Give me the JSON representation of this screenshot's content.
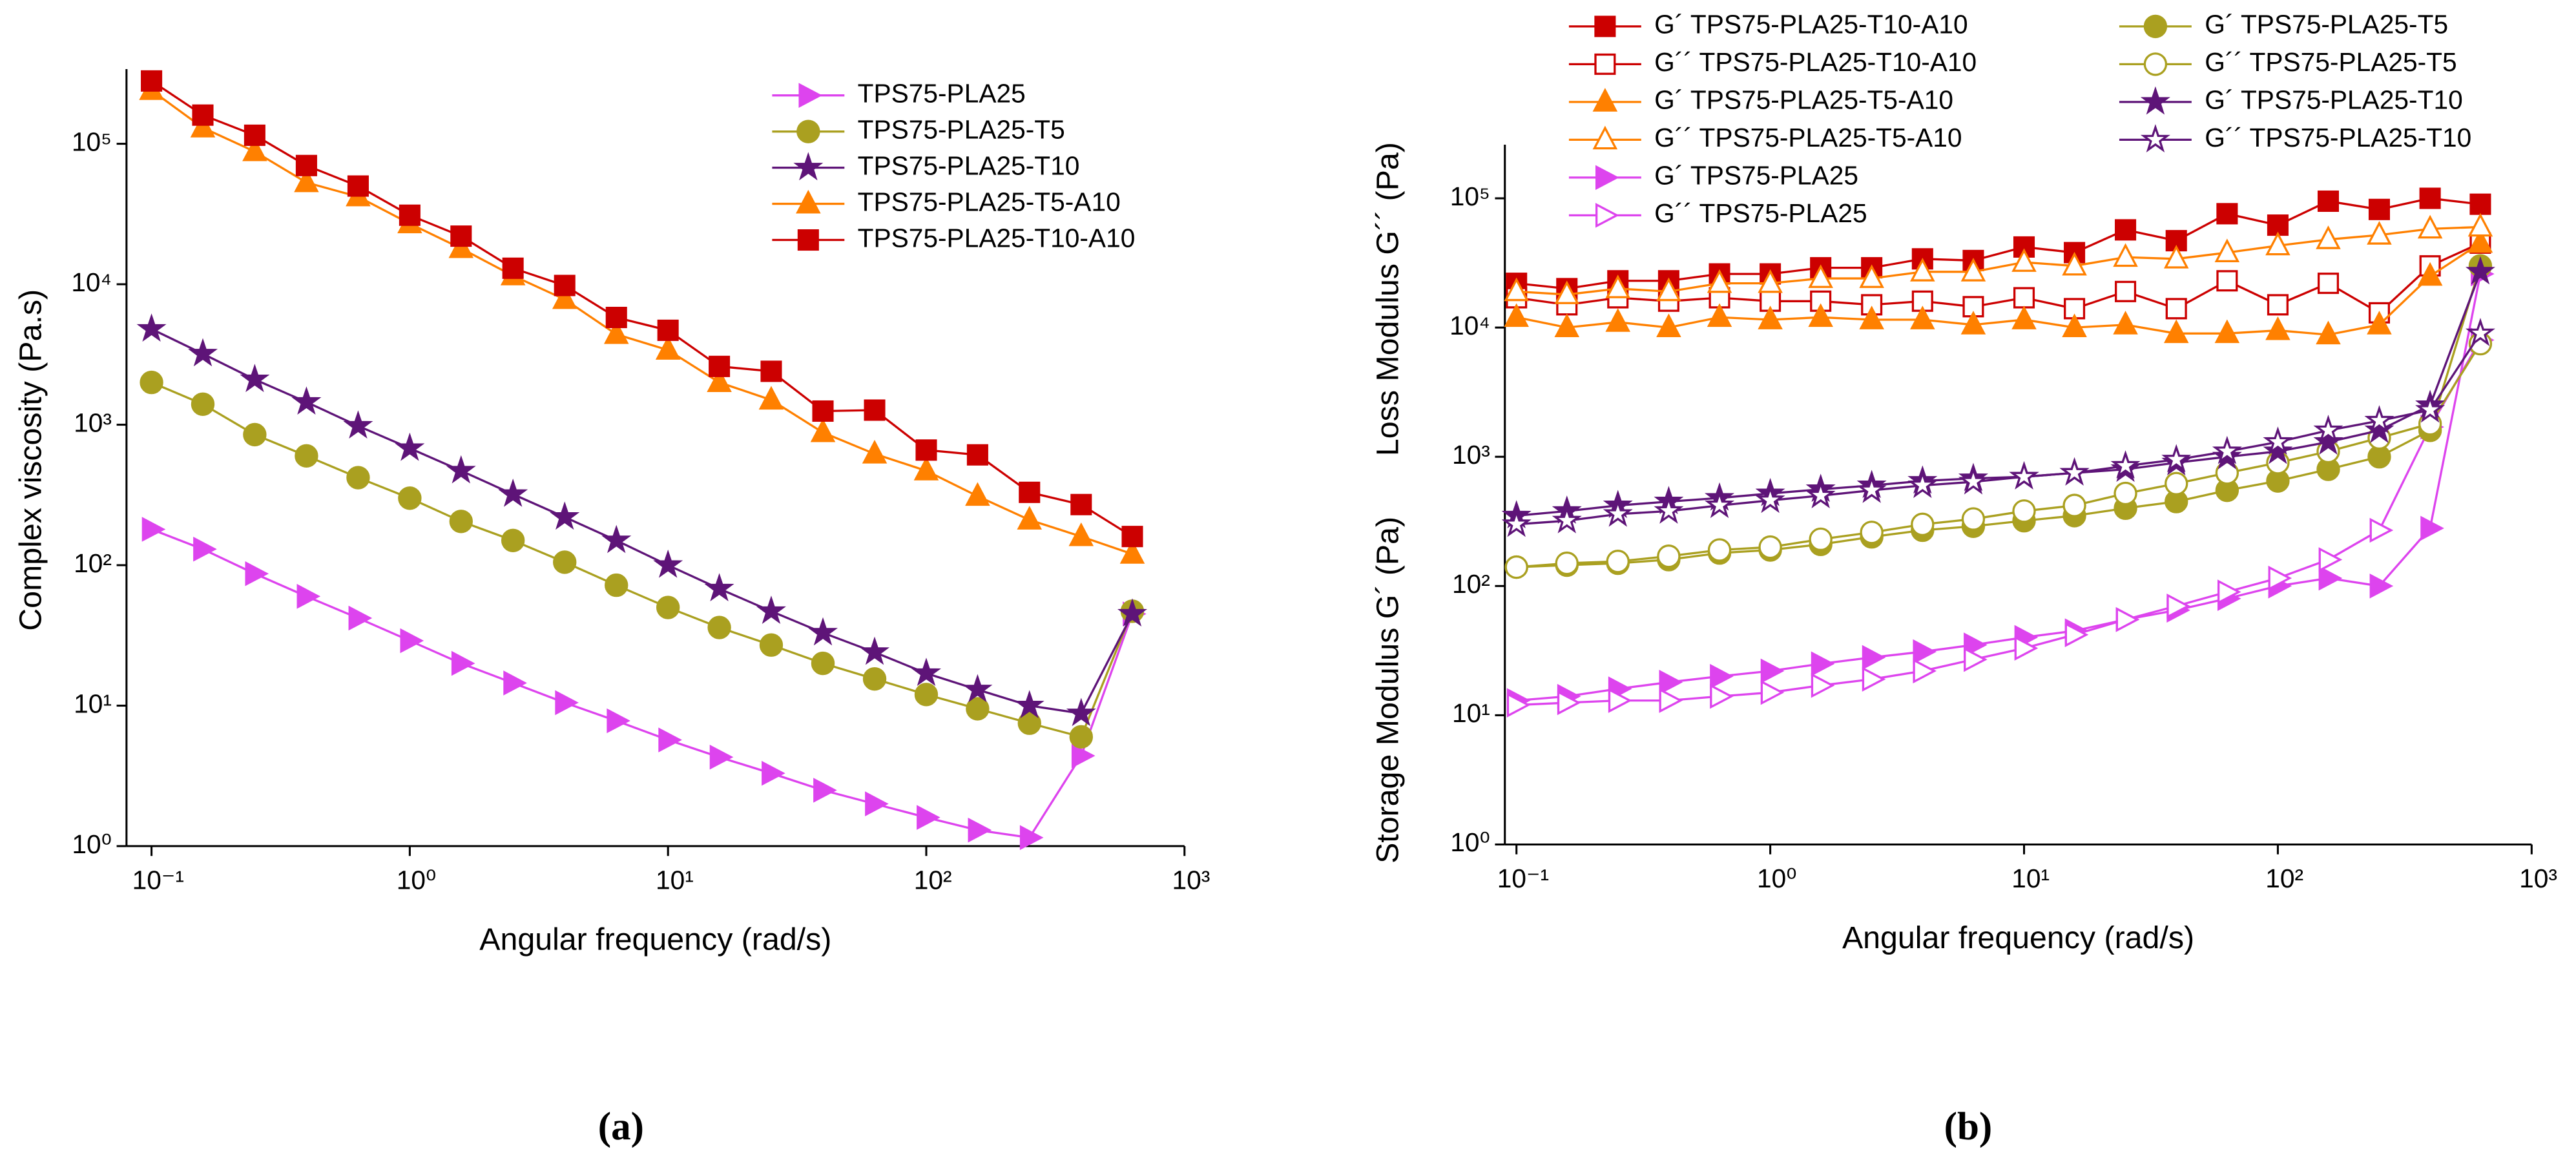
{
  "chart_data": [
    {
      "type": "line",
      "caption": "(a)",
      "xlabel": "Angular frequency (rad/s)",
      "ylabels": [
        "Complex viscosity (Pa.s)"
      ],
      "xscale": "log",
      "yscale": "log",
      "xlim": [
        0.08,
        1000
      ],
      "ylim": [
        1,
        340000
      ],
      "xticks": [
        {
          "value": 0.1,
          "label": "10⁻¹"
        },
        {
          "value": 1,
          "label": "10⁰"
        },
        {
          "value": 10,
          "label": "10¹"
        },
        {
          "value": 100,
          "label": "10²"
        },
        {
          "value": 1000,
          "label": "10³"
        }
      ],
      "yticks": [
        {
          "value": 1,
          "label": "10⁰"
        },
        {
          "value": 10,
          "label": "10¹"
        },
        {
          "value": 100,
          "label": "10²"
        },
        {
          "value": 1000,
          "label": "10³"
        },
        {
          "value": 10000,
          "label": "10⁴"
        },
        {
          "value": 100000,
          "label": "10⁵"
        }
      ],
      "grid": false,
      "x": [
        0.1,
        0.158,
        0.251,
        0.398,
        0.631,
        1,
        1.58,
        2.51,
        3.98,
        6.31,
        10,
        15.8,
        25.1,
        39.8,
        63.1,
        100,
        158,
        251,
        398,
        628
      ],
      "series": [
        {
          "name": "TPS75-PLA25",
          "color": "#dd44ee",
          "marker": "right-triangle",
          "filled": true,
          "values": [
            180,
            130,
            87,
            60,
            42,
            29,
            20,
            14.5,
            10.5,
            7.8,
            5.7,
            4.3,
            3.3,
            2.5,
            2.0,
            1.6,
            1.3,
            1.15,
            4.4,
            45
          ]
        },
        {
          "name": "TPS75-PLA25-T5",
          "color": "#aaa020",
          "marker": "circle",
          "filled": true,
          "values": [
            2000,
            1400,
            850,
            600,
            420,
            300,
            205,
            150,
            105,
            72,
            50,
            36,
            27,
            20,
            15.5,
            12,
            9.5,
            7.5,
            6.0,
            47
          ]
        },
        {
          "name": "TPS75-PLA25-T10",
          "color": "#5e1478",
          "marker": "star",
          "filled": true,
          "values": [
            4800,
            3200,
            2100,
            1450,
            980,
            680,
            470,
            320,
            220,
            150,
            100,
            68,
            47,
            33,
            24,
            17,
            13,
            10,
            8.8,
            45
          ]
        },
        {
          "name": "TPS75-PLA25-T5-A10",
          "color": "#ff8000",
          "marker": "triangle",
          "filled": true,
          "values": [
            240000,
            130000,
            88000,
            53000,
            42000,
            27000,
            18000,
            11500,
            7800,
            4400,
            3400,
            2000,
            1500,
            880,
            620,
            470,
            310,
            210,
            160,
            120
          ]
        },
        {
          "name": "TPS75-PLA25-T10-A10",
          "color": "#cc0000",
          "marker": "square",
          "filled": true,
          "values": [
            280000,
            160000,
            115000,
            70000,
            50000,
            31000,
            22000,
            13000,
            9800,
            5800,
            4700,
            2600,
            2400,
            1250,
            1270,
            660,
            610,
            330,
            270,
            160
          ]
        }
      ]
    },
    {
      "type": "line",
      "caption": "(b)",
      "xlabel": "Angular frequency (rad/s)",
      "ylabels": [
        "Loss Modulus G´´ (Pa)",
        "Storage Modulus G´ (Pa)"
      ],
      "xscale": "log",
      "yscale": "log",
      "xlim": [
        0.09,
        1000
      ],
      "ylim": [
        1,
        260000
      ],
      "xticks": [
        {
          "value": 0.1,
          "label": "10⁻¹"
        },
        {
          "value": 1,
          "label": "10⁰"
        },
        {
          "value": 10,
          "label": "10¹"
        },
        {
          "value": 100,
          "label": "10²"
        },
        {
          "value": 1000,
          "label": "10³"
        }
      ],
      "yticks": [
        {
          "value": 1,
          "label": "10⁰"
        },
        {
          "value": 10,
          "label": "10¹"
        },
        {
          "value": 100,
          "label": "10²"
        },
        {
          "value": 1000,
          "label": "10³"
        },
        {
          "value": 10000,
          "label": "10⁴"
        },
        {
          "value": 100000,
          "label": "10⁵"
        }
      ],
      "grid": false,
      "x": [
        0.1,
        0.158,
        0.251,
        0.398,
        0.631,
        1,
        1.58,
        2.51,
        3.98,
        6.31,
        10,
        15.8,
        25.1,
        39.8,
        63.1,
        100,
        158,
        251,
        398,
        628
      ],
      "series": [
        {
          "name": "G´ TPS75-PLA25-T10-A10",
          "color": "#cc0000",
          "marker": "square",
          "filled": true,
          "values": [
            22000,
            20000,
            23000,
            23000,
            26000,
            26000,
            29000,
            29000,
            34000,
            33000,
            42000,
            38000,
            57000,
            47000,
            76000,
            62000,
            95000,
            82000,
            100000,
            90000
          ]
        },
        {
          "name": "G´´ TPS75-PLA25-T10-A10",
          "color": "#cc0000",
          "marker": "square",
          "filled": false,
          "values": [
            17000,
            15000,
            17000,
            16000,
            17000,
            16000,
            16000,
            15000,
            16000,
            14500,
            17000,
            14000,
            19000,
            14000,
            23000,
            15000,
            22000,
            13000,
            30000,
            45000
          ]
        },
        {
          "name": "G´ TPS75-PLA25-T5-A10",
          "color": "#ff8000",
          "marker": "triangle",
          "filled": true,
          "values": [
            12000,
            10000,
            11000,
            10000,
            12000,
            11500,
            12000,
            11500,
            11500,
            10500,
            11500,
            10000,
            10500,
            9000,
            9000,
            9500,
            8800,
            10500,
            25000,
            45000
          ]
        },
        {
          "name": "G´´ TPS75-PLA25-T5-A10",
          "color": "#ff8000",
          "marker": "triangle",
          "filled": false,
          "values": [
            19000,
            18000,
            20000,
            19000,
            22000,
            22000,
            24000,
            24000,
            27000,
            27000,
            32000,
            30000,
            35000,
            34000,
            38000,
            43000,
            48000,
            52000,
            58000,
            60000
          ]
        },
        {
          "name": "G´ TPS75-PLA25",
          "color": "#dd44ee",
          "marker": "right-triangle",
          "filled": true,
          "values": [
            13,
            14,
            16,
            18,
            20,
            22,
            25,
            28,
            31,
            35,
            40,
            45,
            55,
            65,
            80,
            100,
            115,
            100,
            280,
            26000
          ]
        },
        {
          "name": "G´´ TPS75-PLA25",
          "color": "#dd44ee",
          "marker": "right-triangle",
          "filled": false,
          "values": [
            12,
            12.5,
            13,
            13,
            14,
            15,
            17,
            19,
            22,
            27,
            33,
            42,
            55,
            70,
            90,
            115,
            160,
            270,
            1700,
            8000
          ]
        },
        {
          "name": "G´ TPS75-PLA25-T5",
          "color": "#aaa020",
          "marker": "circle",
          "filled": true,
          "values": [
            140,
            145,
            150,
            160,
            180,
            190,
            210,
            240,
            270,
            290,
            320,
            350,
            400,
            450,
            550,
            650,
            800,
            1000,
            1600,
            30000
          ]
        },
        {
          "name": "G´´ TPS75-PLA25-T5",
          "color": "#aaa020",
          "marker": "circle",
          "filled": false,
          "values": [
            140,
            150,
            155,
            170,
            190,
            200,
            230,
            260,
            300,
            330,
            380,
            420,
            520,
            620,
            750,
            900,
            1100,
            1400,
            1800,
            7500
          ]
        },
        {
          "name": "G´ TPS75-PLA25-T10",
          "color": "#5e1478",
          "marker": "star",
          "filled": true,
          "values": [
            350,
            380,
            420,
            450,
            480,
            520,
            560,
            600,
            650,
            680,
            700,
            750,
            800,
            900,
            1000,
            1100,
            1300,
            1600,
            2500,
            27000
          ]
        },
        {
          "name": "G´´ TPS75-PLA25-T10",
          "color": "#5e1478",
          "marker": "star",
          "filled": false,
          "values": [
            300,
            320,
            360,
            380,
            420,
            460,
            500,
            550,
            600,
            640,
            700,
            750,
            850,
            950,
            1100,
            1300,
            1600,
            1900,
            2300,
            9000
          ]
        }
      ]
    }
  ]
}
